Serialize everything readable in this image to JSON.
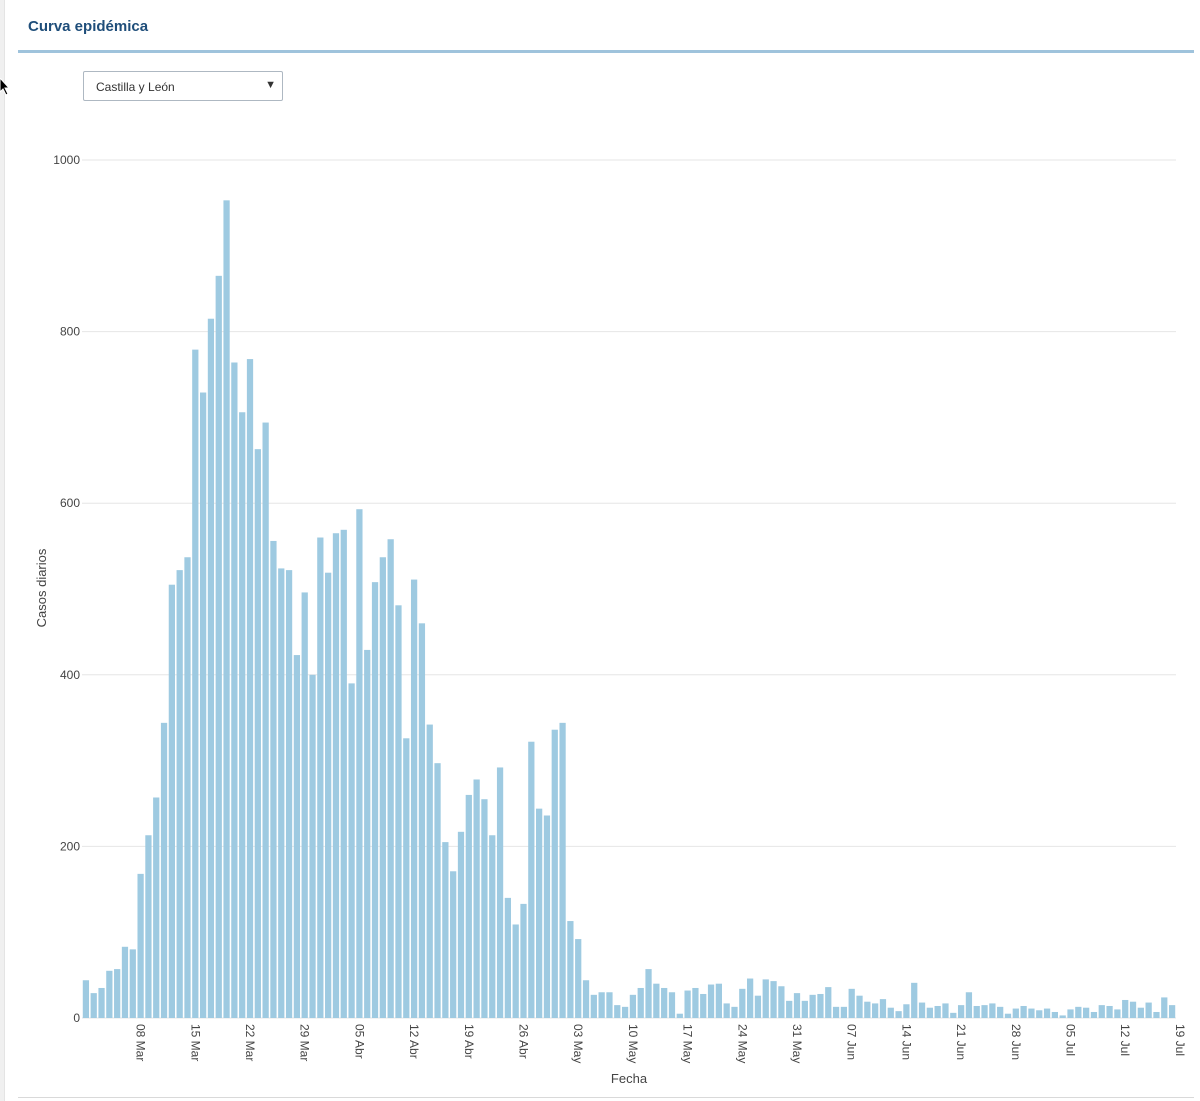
{
  "panel": {
    "title": "Curva epidémica"
  },
  "region_select": {
    "value": "Castilla y León",
    "arrow_icon": "caret-down-icon"
  },
  "colors": {
    "bar": "#9ecae1",
    "title": "#1f4e7a",
    "rule": "#9fc3dc",
    "grid": "#e6e6e6"
  },
  "chart_data": {
    "type": "bar",
    "title": "",
    "xlabel": "Fecha",
    "ylabel": "Casos diarios",
    "ylim": [
      0,
      1000
    ],
    "yticks": [
      0,
      200,
      400,
      600,
      800,
      1000
    ],
    "grid": true,
    "start_date": "2020-03-01",
    "xticks": [
      {
        "date": "2020-03-08",
        "label": "08 Mar"
      },
      {
        "date": "2020-03-15",
        "label": "15 Mar"
      },
      {
        "date": "2020-03-22",
        "label": "22 Mar"
      },
      {
        "date": "2020-03-29",
        "label": "29 Mar"
      },
      {
        "date": "2020-04-05",
        "label": "05 Abr"
      },
      {
        "date": "2020-04-12",
        "label": "12 Abr"
      },
      {
        "date": "2020-04-19",
        "label": "19 Abr"
      },
      {
        "date": "2020-04-26",
        "label": "26 Abr"
      },
      {
        "date": "2020-05-03",
        "label": "03 May"
      },
      {
        "date": "2020-05-10",
        "label": "10 May"
      },
      {
        "date": "2020-05-17",
        "label": "17 May"
      },
      {
        "date": "2020-05-24",
        "label": "24 May"
      },
      {
        "date": "2020-05-31",
        "label": "31 May"
      },
      {
        "date": "2020-06-07",
        "label": "07 Jun"
      },
      {
        "date": "2020-06-14",
        "label": "14 Jun"
      },
      {
        "date": "2020-06-21",
        "label": "21 Jun"
      },
      {
        "date": "2020-06-28",
        "label": "28 Jun"
      },
      {
        "date": "2020-07-05",
        "label": "05 Jul"
      },
      {
        "date": "2020-07-12",
        "label": "12 Jul"
      },
      {
        "date": "2020-07-19",
        "label": "19 Jul"
      }
    ],
    "values": [
      44,
      29,
      35,
      55,
      57,
      83,
      80,
      168,
      213,
      257,
      344,
      505,
      522,
      537,
      779,
      729,
      815,
      865,
      953,
      764,
      706,
      768,
      663,
      694,
      556,
      524,
      522,
      423,
      496,
      400,
      560,
      519,
      565,
      569,
      390,
      593,
      429,
      508,
      537,
      558,
      481,
      326,
      511,
      460,
      342,
      297,
      205,
      171,
      217,
      260,
      278,
      255,
      213,
      292,
      140,
      109,
      133,
      322,
      244,
      236,
      336,
      344,
      113,
      92,
      44,
      27,
      30,
      30,
      15,
      13,
      27,
      35,
      57,
      40,
      35,
      30,
      5,
      32,
      35,
      28,
      39,
      40,
      17,
      13,
      34,
      46,
      26,
      45,
      43,
      37,
      20,
      29,
      20,
      27,
      28,
      36,
      13,
      13,
      34,
      26,
      19,
      17,
      22,
      12,
      8,
      16,
      41,
      18,
      12,
      14,
      17,
      6,
      15,
      30,
      14,
      15,
      17,
      13,
      5,
      11,
      14,
      11,
      9,
      11,
      7,
      3,
      10,
      13,
      12,
      7,
      15,
      14,
      10,
      21,
      19,
      12,
      18,
      7,
      24,
      15
    ]
  }
}
